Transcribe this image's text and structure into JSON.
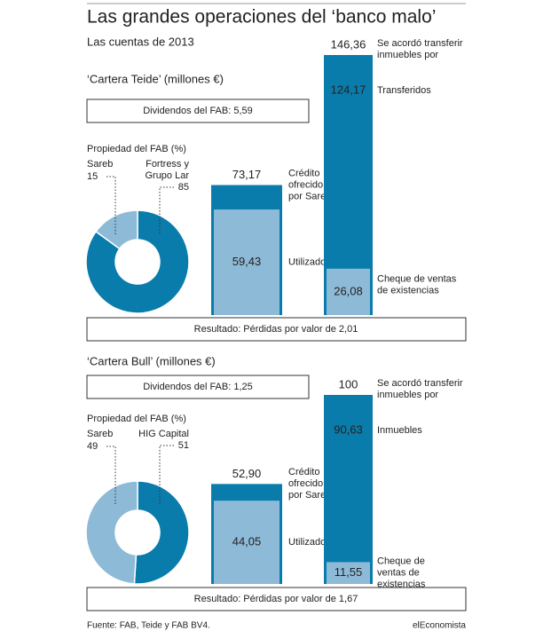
{
  "title": "Las grandes operaciones del ‘banco malo’",
  "subtitle": "Las cuentas de 2013",
  "sections": [
    {
      "heading": "‘Cartera Teide’ (millones €)",
      "dividends": {
        "label": "Dividendos del FAB:",
        "value": "5,59"
      },
      "ownership": {
        "title": "Propiedad del FAB (%)",
        "slices": [
          {
            "name": [
              "Sareb"
            ],
            "value": 15,
            "color": "#8dbad6"
          },
          {
            "name": [
              "Fortress y",
              "Grupo Lar"
            ],
            "value": 85,
            "color": "#0a7cab"
          }
        ]
      },
      "credit": {
        "total": {
          "value": 73.17,
          "label": "73,17"
        },
        "total_label": [
          "Crédito",
          "ofrecido",
          "por Sareb"
        ],
        "used": {
          "value": 59.43,
          "label": "59,43"
        },
        "used_label": [
          "Utilizados"
        ]
      },
      "transfer": {
        "total": {
          "value": 146.36,
          "label": "146,36"
        },
        "total_label": [
          "Se acordó transferir",
          "inmuebles por"
        ],
        "transferred": "124,17",
        "transferred_label": "Transferidos",
        "cheque": {
          "value": 26.08,
          "label": "26,08"
        },
        "cheque_label": [
          "Cheque de ventas",
          "de existencias"
        ]
      },
      "result": {
        "label": "Resultado: Pérdidas por valor de",
        "value": "2,01"
      }
    },
    {
      "heading": "‘Cartera Bull’ (millones €)",
      "dividends": {
        "label": "Dividendos del FAB:",
        "value": "1,25"
      },
      "ownership": {
        "title": "Propiedad del FAB (%)",
        "slices": [
          {
            "name": [
              "Sareb"
            ],
            "value": 49,
            "color": "#8dbad6"
          },
          {
            "name": [
              "HIG Capital"
            ],
            "value": 51,
            "color": "#0a7cab"
          }
        ]
      },
      "credit": {
        "total": {
          "value": 52.9,
          "label": "52,90"
        },
        "total_label": [
          "Crédito",
          "ofrecido",
          "por Sareb"
        ],
        "used": {
          "value": 44.05,
          "label": "44,05"
        },
        "used_label": [
          "Utilizados"
        ]
      },
      "transfer": {
        "total": {
          "value": 100,
          "label": "100"
        },
        "total_label": [
          "Se acordó transferir",
          "inmuebles por"
        ],
        "transferred": "90,63",
        "transferred_label": "Inmuebles",
        "cheque": {
          "value": 11.55,
          "label": "11,55"
        },
        "cheque_label": [
          "Cheque de",
          "ventas de",
          "existencias"
        ]
      },
      "result": {
        "label": "Resultado: Pérdidas por valor de",
        "value": "1,67"
      }
    }
  ],
  "source": "Fuente: FAB, Teide y FAB BV4.",
  "brand": "elEconomista"
}
